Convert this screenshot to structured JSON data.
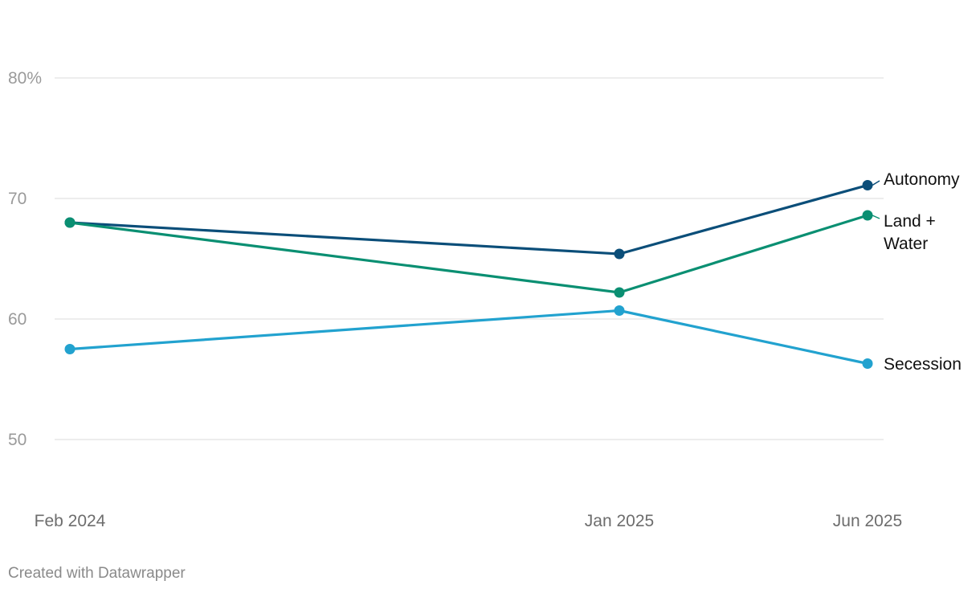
{
  "chart_data": {
    "type": "line",
    "x": [
      "Feb 2024",
      "Jan 2025",
      "Jun 2025"
    ],
    "x_dates": [
      "2024-02",
      "2025-01",
      "2025-06"
    ],
    "ylim": [
      50,
      80
    ],
    "y_ticks": [
      "80%",
      "70",
      "60",
      "50"
    ],
    "y_tick_values": [
      80,
      70,
      60,
      50
    ],
    "grid": true,
    "series": [
      {
        "name": "Autonomy",
        "values": [
          68.0,
          65.4,
          71.1
        ],
        "color": "#0b4e79"
      },
      {
        "name": "Land + Water",
        "values": [
          68.0,
          62.2,
          68.6
        ],
        "color": "#0a8f72"
      },
      {
        "name": "Secession",
        "values": [
          57.5,
          60.7,
          56.3
        ],
        "color": "#22a2cf"
      }
    ],
    "labels": {
      "autonomy": "Autonomy",
      "land_water_line1": "Land +",
      "land_water_line2": "Water",
      "secession": "Secession"
    }
  },
  "footer": {
    "credit": "Created with Datawrapper"
  }
}
